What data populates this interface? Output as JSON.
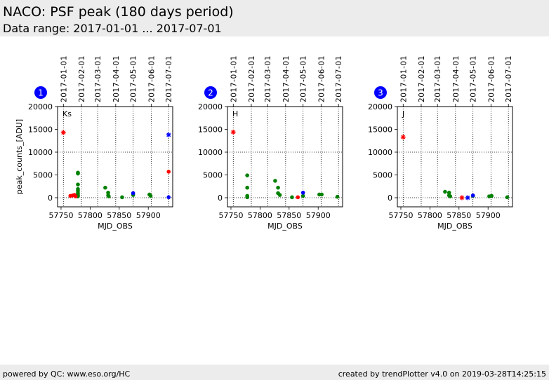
{
  "header": {
    "title": "NACO: PSF peak (180 days period)",
    "subtitle": "Data range: 2017-01-01 ... 2017-07-01"
  },
  "footer": {
    "left": "powered by QC: www.eso.org/HC",
    "right": "created by trendPlotter v4.0 on 2019-03-28T14:25:15"
  },
  "colors": {
    "green": "#008000",
    "red": "#ff0000",
    "blue": "#0000ff",
    "badge": "#0000ff"
  },
  "chart_data": [
    {
      "type": "scatter",
      "panel_number": "1",
      "filter_label": "Ks",
      "xlabel": "MJD_OBS",
      "ylabel": "peak_counts_[ADU]",
      "xlim": [
        57744,
        57942
      ],
      "ylim": [
        -2000,
        20000
      ],
      "x_ticks": [
        57750,
        57800,
        57850,
        57900
      ],
      "y_ticks": [
        0,
        5000,
        10000,
        15000,
        20000
      ],
      "top_ticks": [
        {
          "mjd": 57754,
          "label": "2017-01-01"
        },
        {
          "mjd": 57785,
          "label": "2017-02-01"
        },
        {
          "mjd": 57813,
          "label": "2017-03-01"
        },
        {
          "mjd": 57844,
          "label": "2017-04-01"
        },
        {
          "mjd": 57874,
          "label": "2017-05-01"
        },
        {
          "mjd": 57905,
          "label": "2017-06-01"
        },
        {
          "mjd": 57935,
          "label": "2017-07-01"
        }
      ],
      "hlines": [
        0,
        10000
      ],
      "series": [
        {
          "color": "green",
          "marker": "dot",
          "points": [
            [
              57779,
              5500
            ],
            [
              57779,
              5300
            ],
            [
              57779,
              2900
            ],
            [
              57779,
              1900
            ],
            [
              57779,
              1500
            ],
            [
              57779,
              1000
            ],
            [
              57779,
              600
            ],
            [
              57779,
              300
            ],
            [
              57826,
              2200
            ],
            [
              57831,
              1100
            ],
            [
              57831,
              500
            ],
            [
              57832,
              300
            ],
            [
              57855,
              100
            ],
            [
              57874,
              600
            ],
            [
              57902,
              700
            ],
            [
              57904,
              400
            ]
          ]
        },
        {
          "color": "red",
          "marker": "dot",
          "points": [
            [
              57766,
              400
            ],
            [
              57770,
              500
            ],
            [
              57773,
              600
            ],
            [
              57775,
              300
            ],
            [
              57935,
              5700
            ]
          ]
        },
        {
          "color": "blue",
          "marker": "dot",
          "points": [
            [
              57874,
              1000
            ],
            [
              57935,
              100
            ]
          ]
        },
        {
          "color": "red",
          "marker": "star",
          "points": [
            [
              57754,
              14300
            ]
          ]
        },
        {
          "color": "blue",
          "marker": "star",
          "points": [
            [
              57935,
              13800
            ]
          ]
        }
      ]
    },
    {
      "type": "scatter",
      "panel_number": "2",
      "filter_label": "H",
      "xlabel": "MJD_OBS",
      "ylabel": "",
      "xlim": [
        57744,
        57942
      ],
      "ylim": [
        -2000,
        20000
      ],
      "x_ticks": [
        57750,
        57800,
        57850,
        57900
      ],
      "y_ticks": [
        0,
        5000,
        10000,
        15000,
        20000
      ],
      "top_ticks": [
        {
          "mjd": 57754,
          "label": "2017-01-01"
        },
        {
          "mjd": 57785,
          "label": "2017-02-01"
        },
        {
          "mjd": 57813,
          "label": "2017-03-01"
        },
        {
          "mjd": 57844,
          "label": "2017-04-01"
        },
        {
          "mjd": 57874,
          "label": "2017-05-01"
        },
        {
          "mjd": 57905,
          "label": "2017-06-01"
        },
        {
          "mjd": 57935,
          "label": "2017-07-01"
        }
      ],
      "hlines": [
        0,
        10000
      ],
      "series": [
        {
          "color": "green",
          "marker": "dot",
          "points": [
            [
              57778,
              4900
            ],
            [
              57778,
              2200
            ],
            [
              57778,
              400
            ],
            [
              57778,
              100
            ],
            [
              57826,
              3700
            ],
            [
              57831,
              2200
            ],
            [
              57831,
              1000
            ],
            [
              57834,
              600
            ],
            [
              57855,
              100
            ],
            [
              57874,
              400
            ],
            [
              57902,
              700
            ],
            [
              57906,
              700
            ],
            [
              57933,
              200
            ]
          ]
        },
        {
          "color": "red",
          "marker": "dot",
          "points": [
            [
              57865,
              100
            ]
          ]
        },
        {
          "color": "blue",
          "marker": "dot",
          "points": [
            [
              57874,
              1100
            ]
          ]
        },
        {
          "color": "red",
          "marker": "star",
          "points": [
            [
              57754,
              14400
            ]
          ]
        }
      ]
    },
    {
      "type": "scatter",
      "panel_number": "3",
      "filter_label": "J",
      "xlabel": "MJD_OBS",
      "ylabel": "",
      "xlim": [
        57744,
        57942
      ],
      "ylim": [
        -2000,
        20000
      ],
      "x_ticks": [
        57750,
        57800,
        57850,
        57900
      ],
      "y_ticks": [
        0,
        5000,
        10000,
        15000,
        20000
      ],
      "top_ticks": [
        {
          "mjd": 57754,
          "label": "2017-01-01"
        },
        {
          "mjd": 57785,
          "label": "2017-02-01"
        },
        {
          "mjd": 57813,
          "label": "2017-03-01"
        },
        {
          "mjd": 57844,
          "label": "2017-04-01"
        },
        {
          "mjd": 57874,
          "label": "2017-05-01"
        },
        {
          "mjd": 57905,
          "label": "2017-06-01"
        },
        {
          "mjd": 57935,
          "label": "2017-07-01"
        }
      ],
      "hlines": [
        0,
        10000
      ],
      "series": [
        {
          "color": "green",
          "marker": "dot",
          "points": [
            [
              57826,
              1300
            ],
            [
              57833,
              1100
            ],
            [
              57833,
              500
            ],
            [
              57835,
              300
            ],
            [
              57874,
              400
            ],
            [
              57902,
              300
            ],
            [
              57906,
              400
            ],
            [
              57933,
              100
            ]
          ]
        },
        {
          "color": "blue",
          "marker": "dot",
          "points": [
            [
              57874,
              500
            ]
          ]
        },
        {
          "color": "red",
          "marker": "star",
          "points": [
            [
              57754,
              13300
            ],
            [
              57855,
              0
            ]
          ]
        },
        {
          "color": "blue",
          "marker": "star",
          "points": [
            [
              57865,
              0
            ]
          ]
        }
      ]
    }
  ]
}
